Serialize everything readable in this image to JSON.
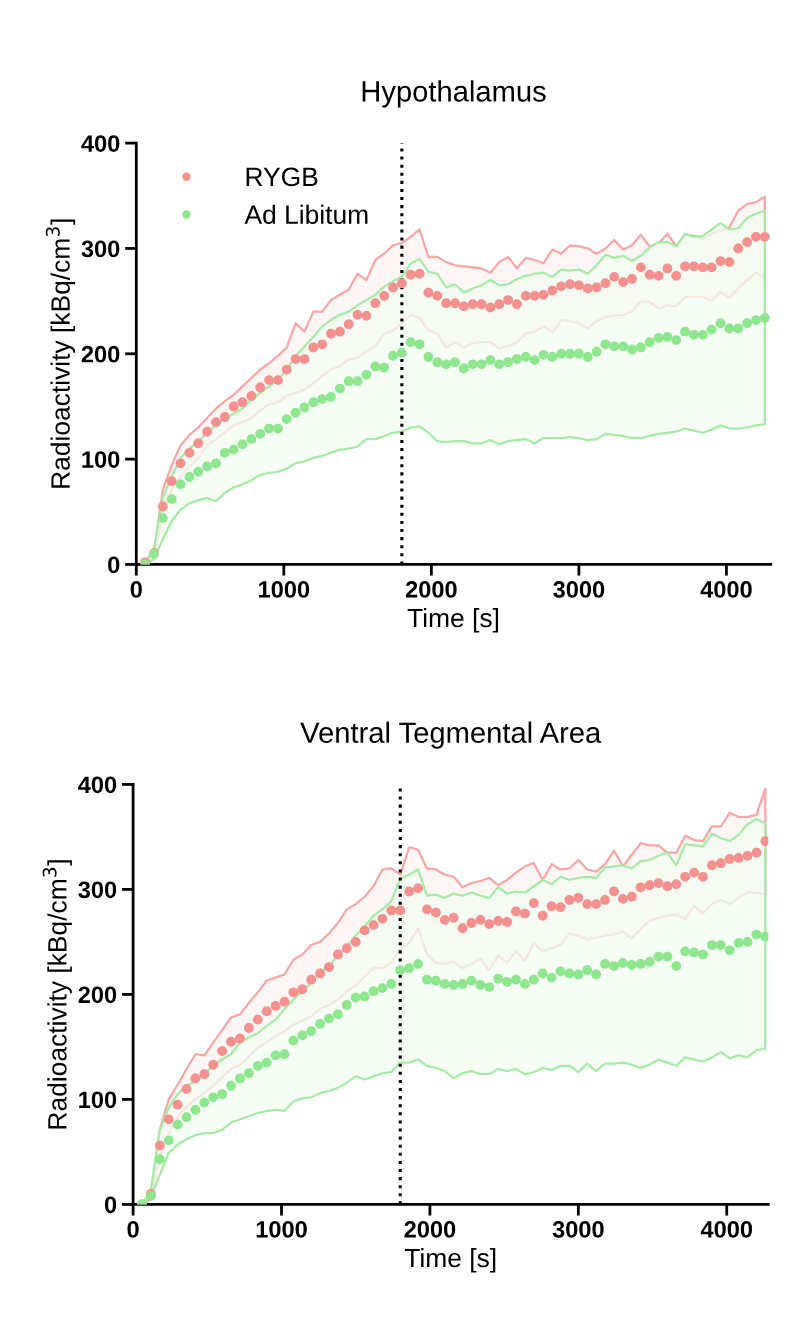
{
  "chart_data": [
    {
      "type": "scatter",
      "title": "Hypothalamus",
      "xlabel": "Time [s]",
      "ylabel": "Radioactivity [kBq/cm$^{3}$]",
      "x": [
        60,
        120,
        180,
        240,
        300,
        360,
        420,
        480,
        540,
        600,
        660,
        720,
        780,
        840,
        900,
        960,
        1020,
        1080,
        1140,
        1200,
        1260,
        1320,
        1380,
        1440,
        1500,
        1560,
        1620,
        1680,
        1740,
        1800,
        1860,
        1920,
        1980,
        2040,
        2100,
        2160,
        2220,
        2280,
        2340,
        2400,
        2460,
        2520,
        2580,
        2640,
        2700,
        2760,
        2820,
        2880,
        2940,
        3000,
        3060,
        3120,
        3180,
        3240,
        3300,
        3360,
        3420,
        3480,
        3540,
        3600,
        3660,
        3720,
        3780,
        3840,
        3900,
        3960,
        4020,
        4080,
        4140,
        4200,
        4260
      ],
      "xlim": [
        0,
        4300
      ],
      "xticks": [
        0,
        1000,
        2000,
        3000,
        4000
      ],
      "ylim": [
        0,
        400
      ],
      "yticks": [
        0,
        100,
        200,
        300,
        400
      ],
      "marker": "circle",
      "grid": false,
      "legend": "top left",
      "ref_lines": [
        {
          "axis": "x",
          "value": 1800,
          "color": "#000000",
          "line_style": "dotted"
        }
      ],
      "series": [
        {
          "name": "RYGB",
          "color": "#f4908e",
          "values": [
            2,
            11,
            55,
            79,
            96,
            106,
            115,
            126,
            135,
            140,
            150,
            154,
            160,
            168,
            175,
            175,
            185,
            195,
            195,
            206,
            209,
            219,
            221,
            228,
            237,
            236,
            248,
            255,
            263,
            267,
            275,
            276,
            258,
            255,
            248,
            248,
            245,
            247,
            247,
            244,
            247,
            251,
            247,
            255,
            255,
            256,
            260,
            264,
            266,
            265,
            262,
            263,
            267,
            273,
            268,
            271,
            282,
            275,
            274,
            281,
            274,
            283,
            283,
            282,
            282,
            288,
            287,
            300,
            306,
            311,
            311
          ],
          "upper": [
            2,
            12,
            71,
            94,
            113,
            123,
            130,
            139,
            148,
            155,
            161,
            169,
            177,
            185,
            191,
            198,
            206,
            229,
            221,
            240,
            240,
            251,
            256,
            261,
            276,
            270,
            289,
            295,
            303,
            305,
            311,
            318,
            292,
            292,
            287,
            284,
            283,
            282,
            281,
            277,
            287,
            292,
            281,
            291,
            289,
            286,
            299,
            295,
            303,
            302,
            300,
            295,
            300,
            308,
            299,
            303,
            313,
            302,
            305,
            314,
            302,
            313,
            312,
            309,
            314,
            317,
            320,
            336,
            342,
            344,
            349
          ],
          "lower": [
            2,
            6,
            48,
            71,
            83,
            93,
            101,
            113,
            119,
            125,
            132,
            135,
            139,
            146,
            152,
            154,
            160,
            163,
            166,
            172,
            179,
            185,
            188,
            195,
            196,
            202,
            207,
            219,
            222,
            229,
            237,
            234,
            222,
            219,
            206,
            211,
            206,
            210,
            211,
            211,
            205,
            207,
            211,
            219,
            221,
            226,
            220,
            232,
            231,
            229,
            224,
            231,
            235,
            236,
            237,
            240,
            250,
            249,
            243,
            246,
            245,
            254,
            254,
            254,
            250,
            259,
            253,
            262,
            270,
            277,
            272
          ]
        },
        {
          "name": "Ad Libitum",
          "color": "#8ee68e",
          "values": [
            0,
            10,
            44,
            62,
            76,
            83,
            88,
            93,
            96,
            106,
            109,
            114,
            119,
            124,
            129,
            129,
            138,
            144,
            149,
            154,
            157,
            159,
            167,
            174,
            174,
            180,
            188,
            187,
            198,
            201,
            211,
            209,
            197,
            192,
            190,
            192,
            186,
            190,
            190,
            194,
            190,
            192,
            195,
            197,
            194,
            199,
            197,
            200,
            200,
            200,
            197,
            202,
            209,
            207,
            207,
            204,
            206,
            211,
            215,
            216,
            213,
            221,
            218,
            218,
            223,
            229,
            224,
            224,
            229,
            232,
            234
          ],
          "upper": [
            2,
            15,
            64,
            83,
            101,
            110,
            117,
            125,
            132,
            139,
            143,
            148,
            156,
            163,
            169,
            175,
            185,
            198,
            207,
            216,
            226,
            232,
            237,
            240,
            246,
            251,
            256,
            264,
            269,
            273,
            286,
            290,
            278,
            276,
            263,
            266,
            258,
            262,
            265,
            270,
            265,
            266,
            271,
            274,
            276,
            277,
            273,
            280,
            279,
            280,
            276,
            284,
            294,
            291,
            293,
            288,
            293,
            301,
            306,
            306,
            302,
            314,
            311,
            312,
            318,
            324,
            318,
            319,
            329,
            333,
            336
          ],
          "lower": [
            0,
            5,
            24,
            41,
            52,
            58,
            61,
            63,
            60,
            68,
            73,
            76,
            80,
            85,
            87,
            88,
            91,
            96,
            98,
            101,
            103,
            106,
            109,
            110,
            112,
            119,
            119,
            122,
            125,
            126,
            130,
            131,
            125,
            117,
            116,
            117,
            117,
            115,
            115,
            118,
            114,
            117,
            118,
            119,
            115,
            120,
            120,
            120,
            121,
            120,
            118,
            119,
            124,
            123,
            122,
            120,
            120,
            122,
            124,
            125,
            126,
            129,
            127,
            125,
            128,
            132,
            129,
            129,
            130,
            132,
            133
          ]
        }
      ]
    },
    {
      "type": "scatter",
      "title": "Ventral Tegmental Area",
      "xlabel": "Time [s]",
      "ylabel": "Radioactivity [kBq/cm$^{3}$]",
      "x": [
        60,
        120,
        180,
        240,
        300,
        360,
        420,
        480,
        540,
        600,
        660,
        720,
        780,
        840,
        900,
        960,
        1020,
        1080,
        1140,
        1200,
        1260,
        1320,
        1380,
        1440,
        1500,
        1560,
        1620,
        1680,
        1740,
        1800,
        1860,
        1920,
        1980,
        2040,
        2100,
        2160,
        2220,
        2280,
        2340,
        2400,
        2460,
        2520,
        2580,
        2640,
        2700,
        2760,
        2820,
        2880,
        2940,
        3000,
        3060,
        3120,
        3180,
        3240,
        3300,
        3360,
        3420,
        3480,
        3540,
        3600,
        3660,
        3720,
        3780,
        3840,
        3900,
        3960,
        4020,
        4080,
        4140,
        4200,
        4260
      ],
      "xlim": [
        0,
        4280
      ],
      "xticks": [
        0,
        1000,
        2000,
        3000,
        4000
      ],
      "ylim": [
        0,
        400
      ],
      "yticks": [
        0,
        100,
        200,
        300,
        400
      ],
      "marker": "circle",
      "grid": false,
      "ref_lines": [
        {
          "axis": "x",
          "value": 1800,
          "color": "#000000",
          "line_style": "dotted"
        }
      ],
      "series": [
        {
          "color": "#f4908e",
          "values": [
            0,
            10,
            56,
            81,
            95,
            110,
            120,
            124,
            133,
            146,
            155,
            158,
            168,
            176,
            184,
            189,
            193,
            202,
            205,
            214,
            220,
            226,
            238,
            244,
            250,
            261,
            266,
            272,
            280,
            280,
            298,
            301,
            281,
            278,
            271,
            273,
            263,
            268,
            271,
            267,
            270,
            269,
            279,
            277,
            287,
            275,
            284,
            283,
            290,
            292,
            286,
            286,
            290,
            298,
            291,
            293,
            302,
            304,
            306,
            303,
            305,
            312,
            316,
            312,
            323,
            325,
            329,
            330,
            332,
            335,
            346
          ],
          "upper": [
            0,
            11,
            71,
            100,
            114,
            129,
            143,
            142,
            154,
            166,
            178,
            181,
            192,
            202,
            213,
            216,
            219,
            233,
            238,
            247,
            250,
            258,
            268,
            281,
            286,
            293,
            303,
            319,
            320,
            314,
            340,
            338,
            320,
            319,
            314,
            312,
            302,
            306,
            308,
            311,
            304,
            309,
            316,
            322,
            325,
            309,
            324,
            319,
            320,
            328,
            319,
            317,
            324,
            337,
            322,
            333,
            344,
            342,
            342,
            335,
            335,
            351,
            347,
            346,
            360,
            360,
            373,
            369,
            369,
            371,
            396
          ],
          "lower": [
            0,
            5,
            46,
            68,
            83,
            93,
            100,
            106,
            113,
            121,
            129,
            133,
            141,
            149,
            154,
            160,
            165,
            171,
            175,
            179,
            186,
            190,
            195,
            203,
            208,
            217,
            225,
            225,
            230,
            243,
            249,
            263,
            238,
            230,
            229,
            231,
            225,
            229,
            234,
            223,
            237,
            230,
            241,
            232,
            249,
            241,
            244,
            247,
            258,
            256,
            252,
            254,
            256,
            257,
            260,
            253,
            262,
            270,
            273,
            275,
            276,
            272,
            284,
            277,
            286,
            290,
            286,
            292,
            297,
            297,
            295
          ]
        },
        {
          "color": "#8ee68e",
          "values": [
            0,
            8,
            43,
            61,
            76,
            83,
            90,
            97,
            102,
            105,
            113,
            120,
            125,
            132,
            135,
            142,
            143,
            156,
            161,
            165,
            172,
            177,
            181,
            190,
            197,
            198,
            203,
            206,
            210,
            223,
            225,
            229,
            214,
            213,
            210,
            209,
            210,
            213,
            209,
            207,
            215,
            212,
            214,
            210,
            214,
            220,
            216,
            222,
            220,
            219,
            223,
            219,
            229,
            227,
            230,
            228,
            229,
            231,
            236,
            236,
            227,
            241,
            240,
            238,
            247,
            247,
            242,
            249,
            250,
            257,
            255
          ],
          "upper": [
            0,
            14,
            71,
            92,
            105,
            113,
            117,
            124,
            132,
            138,
            143,
            154,
            159,
            163,
            170,
            176,
            186,
            195,
            203,
            211,
            221,
            227,
            237,
            246,
            256,
            265,
            275,
            281,
            289,
            310,
            314,
            319,
            294,
            295,
            292,
            296,
            294,
            297,
            294,
            292,
            302,
            296,
            298,
            297,
            303,
            309,
            305,
            312,
            309,
            311,
            312,
            311,
            321,
            322,
            323,
            320,
            327,
            328,
            332,
            335,
            323,
            343,
            342,
            341,
            353,
            349,
            346,
            352,
            362,
            367,
            363
          ],
          "lower": [
            0,
            7,
            28,
            49,
            57,
            62,
            66,
            68,
            68,
            71,
            78,
            81,
            84,
            87,
            89,
            90,
            89,
            98,
            101,
            102,
            106,
            108,
            111,
            116,
            122,
            119,
            122,
            125,
            126,
            135,
            135,
            138,
            132,
            130,
            127,
            120,
            125,
            127,
            124,
            124,
            129,
            127,
            129,
            124,
            126,
            130,
            128,
            132,
            132,
            126,
            134,
            127,
            134,
            134,
            135,
            133,
            130,
            133,
            138,
            135,
            132,
            140,
            138,
            136,
            140,
            145,
            139,
            142,
            140,
            147,
            148
          ]
        }
      ]
    }
  ]
}
